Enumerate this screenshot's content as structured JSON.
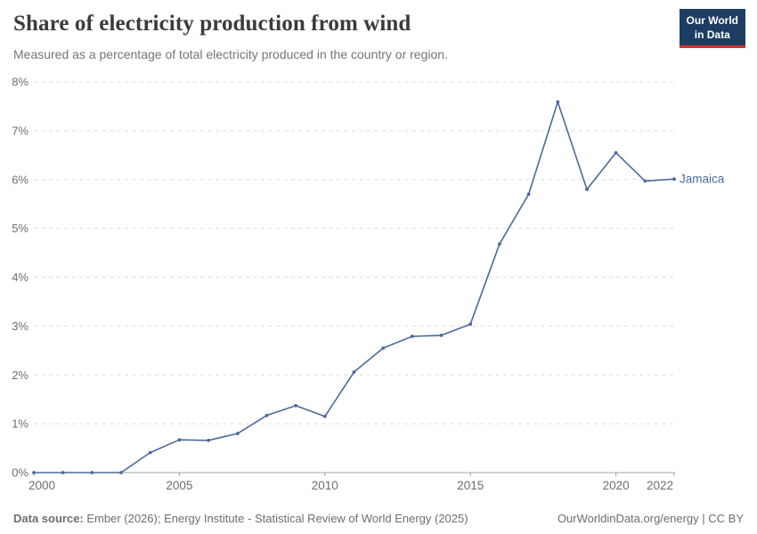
{
  "header": {
    "title": "Share of electricity production from wind",
    "subtitle": "Measured as a percentage of total electricity produced in the country or region.",
    "logo": {
      "line1": "Our World",
      "line2": "in Data"
    }
  },
  "chart_data": {
    "type": "line",
    "x": [
      2000,
      2001,
      2002,
      2003,
      2004,
      2005,
      2006,
      2007,
      2008,
      2009,
      2010,
      2011,
      2012,
      2013,
      2014,
      2015,
      2016,
      2017,
      2018,
      2019,
      2020,
      2021,
      2022
    ],
    "series": [
      {
        "name": "Jamaica",
        "color": "#4c6a9c",
        "values": [
          0,
          0,
          0,
          0,
          0.41,
          0.67,
          0.66,
          0.8,
          1.17,
          1.37,
          1.15,
          2.06,
          2.55,
          2.79,
          2.81,
          3.04,
          4.68,
          5.7,
          7.59,
          5.8,
          6.55,
          5.97,
          6.01
        ]
      }
    ],
    "title": "Share of electricity production from wind",
    "xlabel": "",
    "ylabel": "",
    "xlim": [
      2000,
      2022
    ],
    "ylim": [
      0,
      8
    ],
    "x_ticks": [
      {
        "label": "2000",
        "value": 2000
      },
      {
        "label": "2005",
        "value": 2005
      },
      {
        "label": "2010",
        "value": 2010
      },
      {
        "label": "2015",
        "value": 2015
      },
      {
        "label": "2020",
        "value": 2020
      },
      {
        "label": "2022",
        "value": 2022
      }
    ],
    "y_tick_labels": [
      "0%",
      "1%",
      "2%",
      "3%",
      "4%",
      "5%",
      "6%",
      "7%",
      "8%"
    ],
    "grid": "horizontal-dashed",
    "legend_position": "end-of-line-label",
    "end_label": "Jamaica"
  },
  "footer": {
    "datasource_label": "Data source:",
    "datasource_text": " Ember (2026); Energy Institute - Statistical Review of World Energy (2025)",
    "right_text": "OurWorldinData.org/energy | CC BY"
  },
  "colors": {
    "line": "#4c6a9c",
    "gridline": "#dcdcdc",
    "axis": "#a5a5a5",
    "tick_text": "#6e6e6e",
    "title_text": "#3b3b3b",
    "subtitle_text": "#757575",
    "logo_bg": "#1d3d63",
    "logo_stripe": "#dc2e27"
  }
}
